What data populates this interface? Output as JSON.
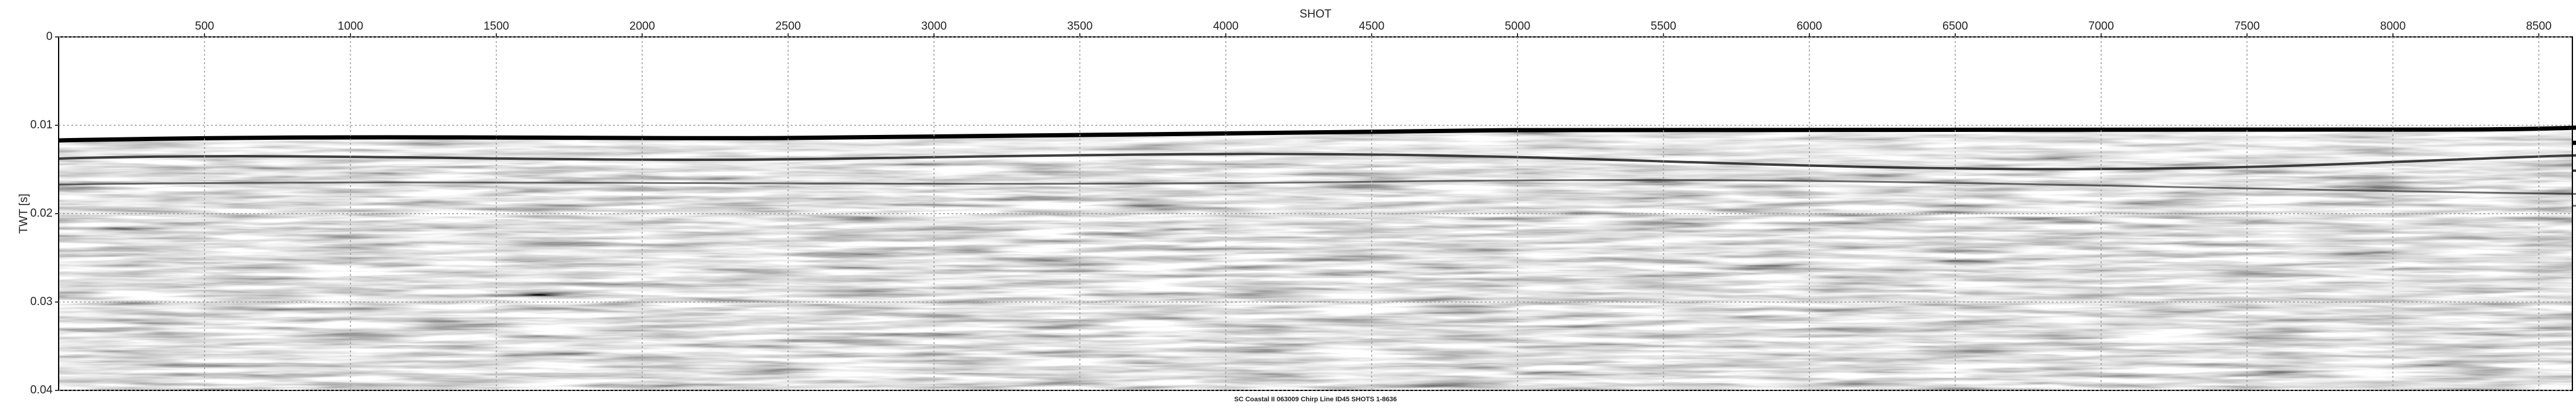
{
  "chart_data": {
    "type": "seismic",
    "title": "SHOT",
    "y_label": "TWT [s]",
    "caption": "SC Coastal II 063009 Chirp Line ID45 SHOTS 1-8636",
    "xlim": [
      0,
      8615
    ],
    "xticks": [
      500,
      1000,
      1500,
      2000,
      2500,
      3000,
      3500,
      4000,
      4500,
      5000,
      5500,
      6000,
      6500,
      7000,
      7500,
      8000,
      8500
    ],
    "ylim": [
      0,
      0.04
    ],
    "yticks": [
      0,
      0.01,
      0.02,
      0.03,
      0.04
    ],
    "grid": true
  }
}
